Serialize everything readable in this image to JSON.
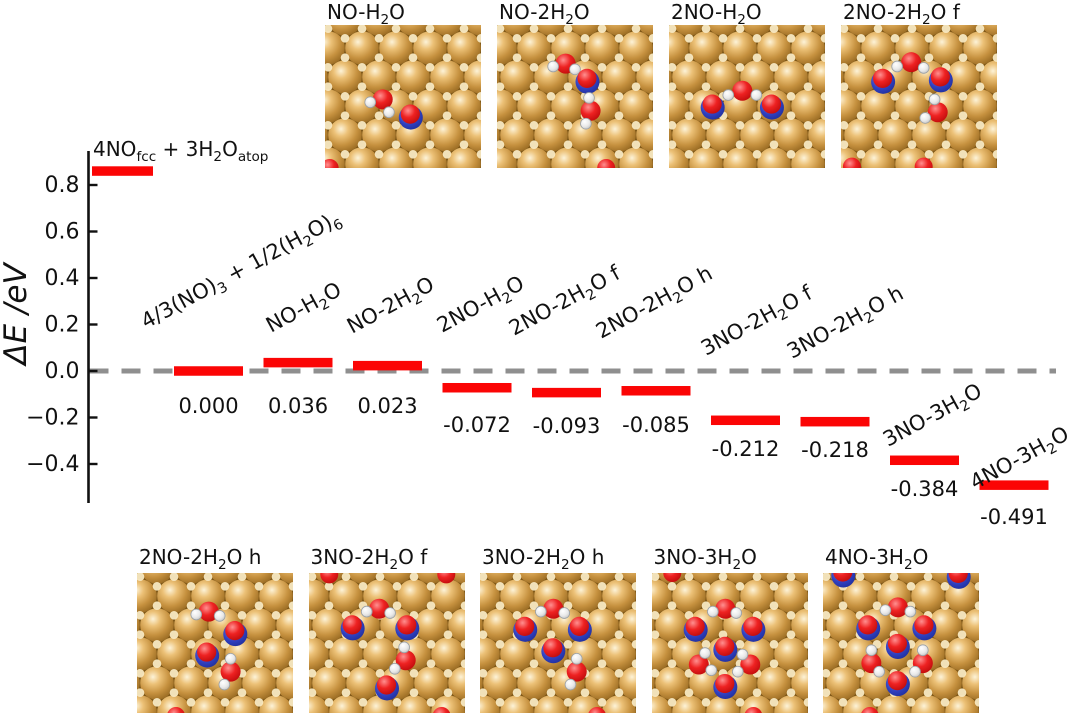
{
  "figure": {
    "background": "#ffffff",
    "text_color": "#111111",
    "level_color": "#fb0505",
    "zero_line_color": "#8f8f8f",
    "y_axis": {
      "label": "ΔE /eV",
      "tick_labels": [
        "0.8",
        "0.6",
        "0.4",
        "0.2",
        "0.0",
        "−0.2",
        "−0.4"
      ],
      "tick_values": [
        0.8,
        0.6,
        0.4,
        0.2,
        0.0,
        -0.2,
        -0.4
      ]
    }
  },
  "chart_data": {
    "type": "bar",
    "subtype": "energy-level-diagram",
    "title": "",
    "xlabel": "",
    "ylabel": "ΔE /eV",
    "ylim": [
      -0.56,
      0.93
    ],
    "yticks": [
      0.8,
      0.6,
      0.4,
      0.2,
      0.0,
      -0.2,
      -0.4
    ],
    "reference_line": 0.0,
    "grid": false,
    "levels": [
      {
        "label": "4NO{fcc} + 3H{2}O{atop}",
        "value": 0.86,
        "value_label": null,
        "value_estimated": true,
        "label_orientation": "horizontal"
      },
      {
        "label": "4/3(NO){3} + 1/2(H{2}O){6}",
        "value": 0.0,
        "value_label": "0.000",
        "label_orientation": "rotated"
      },
      {
        "label": "NO-H{2}O",
        "value": 0.036,
        "value_label": "0.036",
        "label_orientation": "rotated"
      },
      {
        "label": "NO-2H{2}O",
        "value": 0.023,
        "value_label": "0.023",
        "label_orientation": "rotated"
      },
      {
        "label": "2NO-H{2}O",
        "value": -0.072,
        "value_label": "-0.072",
        "label_orientation": "rotated"
      },
      {
        "label": "2NO-2H{2}O f",
        "value": -0.093,
        "value_label": "-0.093",
        "label_orientation": "rotated"
      },
      {
        "label": "2NO-2H{2}O h",
        "value": -0.085,
        "value_label": "-0.085",
        "label_orientation": "rotated"
      },
      {
        "label": "3NO-2H{2}O f",
        "value": -0.212,
        "value_label": "-0.212",
        "label_orientation": "rotated"
      },
      {
        "label": "3NO-2H{2}O h",
        "value": -0.218,
        "value_label": "-0.218",
        "label_orientation": "rotated"
      },
      {
        "label": "3NO-3H{2}O",
        "value": -0.384,
        "value_label": "-0.384",
        "label_orientation": "rotated"
      },
      {
        "label": "4NO-3H{2}O",
        "value": -0.491,
        "value_label": "-0.491",
        "label_orientation": "rotated"
      }
    ]
  },
  "structure_panels": {
    "description": "Top-view atomic structures on Au(111): gold Au atoms, red O, blue N, white H",
    "atom_colors": {
      "Au": "#c6913f",
      "O": "#e01515",
      "N": "#2f3fbf",
      "H": "#e8e8e8"
    },
    "top_row": [
      {
        "label": "NO-H{2}O",
        "atoms": [
          [
            "w",
            0.37,
            0.52,
            [
              [
                -0.08,
                0.02
              ],
              [
                0.04,
                0.09
              ]
            ]
          ],
          [
            "no",
            0.55,
            0.63
          ],
          [
            "o",
            0.03,
            1.0
          ]
        ]
      },
      {
        "label": "NO-2H{2}O",
        "atoms": [
          [
            "w",
            0.44,
            0.27,
            [
              [
                -0.08,
                0.02
              ],
              [
                0.06,
                0.04
              ]
            ]
          ],
          [
            "no",
            0.58,
            0.38
          ],
          [
            "w",
            0.6,
            0.6,
            [
              [
                -0.01,
                -0.09
              ],
              [
                -0.03,
                0.09
              ]
            ]
          ],
          [
            "o",
            0.7,
            1.0
          ]
        ]
      },
      {
        "label": "2NO-H{2}O",
        "atoms": [
          [
            "no",
            0.28,
            0.56
          ],
          [
            "w",
            0.47,
            0.46,
            [
              [
                -0.09,
                0.03
              ],
              [
                0.09,
                0.03
              ]
            ]
          ],
          [
            "no",
            0.66,
            0.56
          ]
        ]
      },
      {
        "label": "2NO-2H{2}O f",
        "atoms": [
          [
            "no",
            0.27,
            0.38
          ],
          [
            "w",
            0.45,
            0.26,
            [
              [
                -0.09,
                0.03
              ],
              [
                0.08,
                0.04
              ]
            ]
          ],
          [
            "no",
            0.64,
            0.37
          ],
          [
            "w",
            0.62,
            0.61,
            [
              [
                -0.02,
                -0.09
              ],
              [
                -0.08,
                0.04
              ]
            ]
          ],
          [
            "o",
            0.07,
            0.99
          ],
          [
            "o",
            0.53,
            0.99
          ]
        ]
      }
    ],
    "bottom_row": [
      {
        "label": "2NO-2H{2}O h",
        "atoms": [
          [
            "w",
            0.46,
            0.27,
            [
              [
                -0.08,
                0.02
              ],
              [
                0.07,
                0.03
              ]
            ]
          ],
          [
            "no",
            0.63,
            0.41
          ],
          [
            "no",
            0.45,
            0.56
          ],
          [
            "w",
            0.6,
            0.69,
            [
              [
                0.0,
                -0.09
              ],
              [
                -0.04,
                0.09
              ]
            ]
          ],
          [
            "o",
            0.25,
            1.0
          ]
        ]
      },
      {
        "label": "3NO-2H{2}O f",
        "atoms": [
          [
            "o",
            0.13,
            0.01
          ],
          [
            "o",
            0.88,
            0.01
          ],
          [
            "w",
            0.45,
            0.25,
            [
              [
                -0.08,
                0.02
              ],
              [
                0.07,
                0.03
              ]
            ]
          ],
          [
            "no",
            0.28,
            0.37
          ],
          [
            "no",
            0.63,
            0.37
          ],
          [
            "w",
            0.62,
            0.61,
            [
              [
                -0.01,
                -0.09
              ],
              [
                -0.07,
                0.06
              ]
            ]
          ],
          [
            "no",
            0.5,
            0.79
          ],
          [
            "o",
            0.85,
            1.0
          ]
        ]
      },
      {
        "label": "3NO-2H{2}O h",
        "atoms": [
          [
            "w",
            0.47,
            0.25,
            [
              [
                -0.08,
                0.02
              ],
              [
                0.07,
                0.03
              ]
            ]
          ],
          [
            "no",
            0.29,
            0.38
          ],
          [
            "no",
            0.64,
            0.38
          ],
          [
            "no",
            0.47,
            0.53
          ],
          [
            "w",
            0.62,
            0.69,
            [
              [
                0.0,
                -0.09
              ],
              [
                -0.04,
                0.09
              ]
            ]
          ],
          [
            "o",
            0.75,
            1.0
          ]
        ]
      },
      {
        "label": "3NO-3H{2}O",
        "atoms": [
          [
            "o",
            0.13,
            0.0
          ],
          [
            "w",
            0.47,
            0.25,
            [
              [
                -0.08,
                0.02
              ],
              [
                0.07,
                0.03
              ]
            ]
          ],
          [
            "no",
            0.28,
            0.38
          ],
          [
            "no",
            0.65,
            0.38
          ],
          [
            "no",
            0.47,
            0.52
          ],
          [
            "w",
            0.3,
            0.64,
            [
              [
                0.04,
                -0.08
              ],
              [
                0.08,
                0.04
              ]
            ]
          ],
          [
            "w",
            0.63,
            0.64,
            [
              [
                -0.05,
                -0.07
              ],
              [
                -0.08,
                0.05
              ]
            ]
          ],
          [
            "no",
            0.47,
            0.78
          ],
          [
            "o",
            0.65,
            1.0
          ]
        ]
      },
      {
        "label": "4NO-3H{2}O",
        "atoms": [
          [
            "no",
            0.13,
            0.0
          ],
          [
            "no",
            0.87,
            0.01
          ],
          [
            "w",
            0.48,
            0.24,
            [
              [
                -0.08,
                0.02
              ],
              [
                0.08,
                0.03
              ]
            ]
          ],
          [
            "no",
            0.29,
            0.37
          ],
          [
            "no",
            0.65,
            0.37
          ],
          [
            "no",
            0.48,
            0.5
          ],
          [
            "w",
            0.31,
            0.63,
            [
              [
                0.0,
                -0.09
              ],
              [
                0.05,
                0.06
              ]
            ]
          ],
          [
            "w",
            0.64,
            0.63,
            [
              [
                0.0,
                -0.09
              ],
              [
                -0.05,
                0.06
              ]
            ]
          ],
          [
            "no",
            0.48,
            0.76
          ],
          [
            "o",
            0.3,
            1.0
          ]
        ]
      }
    ]
  }
}
